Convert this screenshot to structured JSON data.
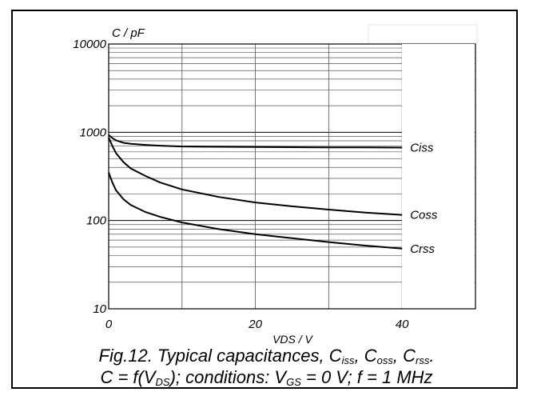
{
  "chart_data": {
    "type": "line",
    "y_scale": "log",
    "ylim": [
      10,
      10000
    ],
    "xlim": [
      0,
      50
    ],
    "grid": true,
    "y_unit_label": "C / pF",
    "x_unit_label": "VDS / V",
    "y_ticks": [
      {
        "value": 10,
        "label": "10"
      },
      {
        "value": 100,
        "label": "100"
      },
      {
        "value": 1000,
        "label": "1000"
      },
      {
        "value": 10000,
        "label": "10000"
      }
    ],
    "x_ticks": [
      {
        "value": 0,
        "label": "0"
      },
      {
        "value": 20,
        "label": "20"
      },
      {
        "value": 40,
        "label": "40"
      }
    ],
    "series": [
      {
        "name": "Ciss",
        "color": "#000000",
        "x": [
          0,
          0.5,
          1,
          2,
          3,
          5,
          7,
          10,
          15,
          20,
          25,
          30,
          35,
          40
        ],
        "y": [
          930,
          860,
          810,
          760,
          740,
          720,
          705,
          690,
          685,
          680,
          678,
          675,
          673,
          670
        ]
      },
      {
        "name": "Coss",
        "color": "#000000",
        "x": [
          0,
          0.5,
          1,
          2,
          3,
          5,
          7,
          10,
          15,
          20,
          25,
          30,
          35,
          40
        ],
        "y": [
          870,
          700,
          580,
          460,
          390,
          320,
          270,
          225,
          185,
          160,
          145,
          133,
          123,
          116
        ]
      },
      {
        "name": "Crss",
        "color": "#000000",
        "x": [
          0,
          0.5,
          1,
          2,
          3,
          5,
          7,
          10,
          15,
          20,
          25,
          30,
          35,
          40
        ],
        "y": [
          350,
          270,
          220,
          175,
          150,
          125,
          110,
          95,
          80,
          70,
          63,
          57,
          52,
          48
        ]
      }
    ]
  },
  "caption": {
    "line1_prefix": "Fig.12.   Typical capacitances, C",
    "iss_sub": "iss",
    "sep1": ", C",
    "oss_sub": "oss",
    "sep2": ", C",
    "rss_sub": "rss",
    "line1_suffix": ".",
    "line2_a": "C = f(V",
    "ds_sub": "DS",
    "line2_b": "); conditions: V",
    "gs_sub": "GS",
    "line2_c": " = 0 V; f = 1 MHz"
  }
}
